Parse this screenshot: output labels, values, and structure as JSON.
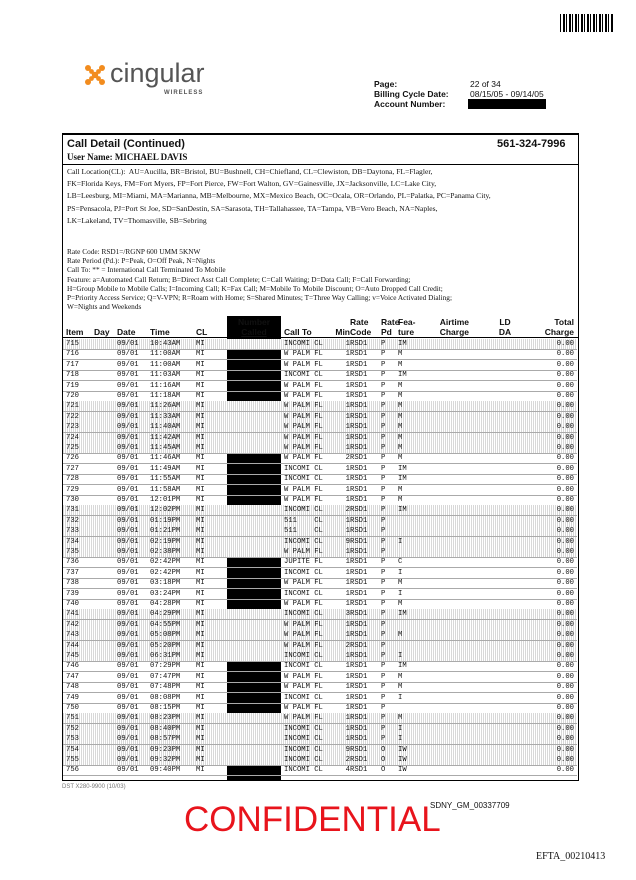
{
  "header": {
    "logo": "cingular",
    "logo_sub": "WIRELESS",
    "page_label": "Page:",
    "page_value": "22 of 34",
    "cycle_label": "Billing Cycle Date:",
    "cycle_value": "08/15/05 - 09/14/05",
    "account_label": "Account Number:"
  },
  "section": {
    "title": "Call Detail (Continued)",
    "phone": "561-324-7996",
    "user": "User Name: MICHAEL DAVIS"
  },
  "legend_location": [
    "Call Location(CL):  AU=Aucilla, BR=Bristol, BU=Bushnell, CH=Chiefland, CL=Clewiston, DB=Daytona, FL=Flagler,",
    "FK=Florida Keys, FM=Fort Myers, FP=Fort Pierce, FW=Fort Walton, GV=Gainesville, JX=Jacksonville, LC=Lake City,",
    "LB=Leesburg, MI=Miami, MA=Marianna, MB=Melbourne, MX=Mexico Beach, OC=Ocala, OR=Orlando, PL=Palatka, PC=Panama City,",
    "PS=Pensacola, PJ=Port St Joe, SD=SanDestin, SA=Sarasota, TH=Tallahassee, TA=Tampa, VB=Vero Beach, NA=Naples,",
    "LK=Lakeland, TV=Thomasville, SB=Sebring"
  ],
  "legend_codes": [
    "Rate Code: RSD1=/RGNP 600 UMM 5KNW",
    "Rate Period (Pd.): P=Peak, O=Off Peak, N=Nights",
    "Call To: ** = International Call Terminated To Mobile",
    "Feature: a=Automated Call Return; B=Direct Asst Call Complete; C=Call Waiting; D=Data Call; F=Call Forwarding;",
    "H=Group Mobile to Mobile Calls; I=Incoming Call; K=Fax Call; M=Mobile To Mobile Discount; O=Auto Dropped Call Credit;",
    "P=Priority Access Service; Q=V-VPN; R=Roam with Home; S=Shared Minutes; T=Three Way Calling; v=Voice Activated Dialing;",
    "W=Nights and Weekends"
  ],
  "table": {
    "columns": [
      [
        "Item"
      ],
      [
        "Day"
      ],
      [
        "Date"
      ],
      [
        "Time"
      ],
      [
        "CL"
      ],
      [
        "Number",
        "Called"
      ],
      [
        "Call To"
      ],
      [
        "Min"
      ],
      [
        "Rate",
        "Code"
      ],
      [
        "Rate",
        "Pd"
      ],
      [
        "Fea-",
        "ture"
      ],
      [
        "Airtime",
        "Charge"
      ],
      [
        "LD",
        "DA"
      ],
      [
        "Total",
        "Charge"
      ]
    ],
    "rows": [
      [
        "715",
        "09/01",
        "10:43AM",
        "MI",
        "INCOMI CL",
        "1",
        "RSD1",
        "P",
        "IM",
        "0.00"
      ],
      [
        "716",
        "09/01",
        "11:00AM",
        "MI",
        "W PALM FL",
        "1",
        "RSD1",
        "P",
        "M",
        "0.00"
      ],
      [
        "717",
        "09/01",
        "11:00AM",
        "MI",
        "W PALM FL",
        "1",
        "RSD1",
        "P",
        "M",
        "0.00"
      ],
      [
        "718",
        "09/01",
        "11:03AM",
        "MI",
        "INCOMI CL",
        "1",
        "RSD1",
        "P",
        "IM",
        "0.00"
      ],
      [
        "719",
        "09/01",
        "11:16AM",
        "MI",
        "W PALM FL",
        "1",
        "RSD1",
        "P",
        "M",
        "0.00"
      ],
      [
        "720",
        "09/01",
        "11:18AM",
        "MI",
        "W PALM FL",
        "1",
        "RSD1",
        "P",
        "M",
        "0.00"
      ],
      [
        "721",
        "09/01",
        "11:26AM",
        "MI",
        "W PALM FL",
        "1",
        "RSD1",
        "P",
        "M",
        "0.00"
      ],
      [
        "722",
        "09/01",
        "11:33AM",
        "MI",
        "W PALM FL",
        "1",
        "RSD1",
        "P",
        "M",
        "0.00"
      ],
      [
        "723",
        "09/01",
        "11:40AM",
        "MI",
        "W PALM FL",
        "1",
        "RSD1",
        "P",
        "M",
        "0.00"
      ],
      [
        "724",
        "09/01",
        "11:42AM",
        "MI",
        "W PALM FL",
        "1",
        "RSD1",
        "P",
        "M",
        "0.00"
      ],
      [
        "725",
        "09/01",
        "11:45AM",
        "MI",
        "W PALM FL",
        "1",
        "RSD1",
        "P",
        "M",
        "0.00"
      ],
      [
        "726",
        "09/01",
        "11:46AM",
        "MI",
        "W PALM FL",
        "2",
        "RSD1",
        "P",
        "M",
        "0.00"
      ],
      [
        "727",
        "09/01",
        "11:49AM",
        "MI",
        "INCOMI CL",
        "1",
        "RSD1",
        "P",
        "IM",
        "0.00"
      ],
      [
        "728",
        "09/01",
        "11:55AM",
        "MI",
        "INCOMI CL",
        "1",
        "RSD1",
        "P",
        "IM",
        "0.00"
      ],
      [
        "729",
        "09/01",
        "11:58AM",
        "MI",
        "W PALM FL",
        "1",
        "RSD1",
        "P",
        "M",
        "0.00"
      ],
      [
        "730",
        "09/01",
        "12:01PM",
        "MI",
        "W PALM FL",
        "1",
        "RSD1",
        "P",
        "M",
        "0.00"
      ],
      [
        "731",
        "09/01",
        "12:02PM",
        "MI",
        "INCOMI CL",
        "2",
        "RSD1",
        "P",
        "IM",
        "0.00"
      ],
      [
        "732",
        "09/01",
        "01:19PM",
        "MI",
        "511    CL",
        "1",
        "RSD1",
        "P",
        null,
        "0.00"
      ],
      [
        "733",
        "09/01",
        "01:21PM",
        "MI",
        "511    CL",
        "1",
        "RSD1",
        "P",
        null,
        "0.00"
      ],
      [
        "734",
        "09/01",
        "02:19PM",
        "MI",
        "INCOMI CL",
        "9",
        "RSD1",
        "P",
        "I",
        "0.00"
      ],
      [
        "735",
        "09/01",
        "02:38PM",
        "MI",
        "W PALM FL",
        "1",
        "RSD1",
        "P",
        null,
        "0.00"
      ],
      [
        "736",
        "09/01",
        "02:42PM",
        "MI",
        "JUPITE FL",
        "1",
        "RSD1",
        "P",
        "C",
        "0.00"
      ],
      [
        "737",
        "09/01",
        "02:42PM",
        "MI",
        "INCOMI CL",
        "1",
        "RSD1",
        "P",
        "I",
        "0.00"
      ],
      [
        "738",
        "09/01",
        "03:18PM",
        "MI",
        "W PALM FL",
        "1",
        "RSD1",
        "P",
        "M",
        "0.00"
      ],
      [
        "739",
        "09/01",
        "03:24PM",
        "MI",
        "INCOMI CL",
        "1",
        "RSD1",
        "P",
        "I",
        "0.00"
      ],
      [
        "740",
        "09/01",
        "04:28PM",
        "MI",
        "W PALM FL",
        "1",
        "RSD1",
        "P",
        "M",
        "0.00"
      ],
      [
        "741",
        "09/01",
        "04:29PM",
        "MI",
        "INCOMI CL",
        "3",
        "RSD1",
        "P",
        "IM",
        "0.00"
      ],
      [
        "742",
        "09/01",
        "04:55PM",
        "MI",
        "W PALM FL",
        "1",
        "RSD1",
        "P",
        null,
        "0.00"
      ],
      [
        "743",
        "09/01",
        "05:08PM",
        "MI",
        "W PALM FL",
        "1",
        "RSD1",
        "P",
        "M",
        "0.00"
      ],
      [
        "744",
        "09/01",
        "05:20PM",
        "MI",
        "W PALM FL",
        "2",
        "RSD1",
        "P",
        null,
        "0.00"
      ],
      [
        "745",
        "09/01",
        "06:31PM",
        "MI",
        "INCOMI CL",
        "1",
        "RSD1",
        "P",
        "I",
        "0.00"
      ],
      [
        "746",
        "09/01",
        "07:29PM",
        "MI",
        "INCOMI CL",
        "1",
        "RSD1",
        "P",
        "IM",
        "0.00"
      ],
      [
        "747",
        "09/01",
        "07:47PM",
        "MI",
        "W PALM FL",
        "1",
        "RSD1",
        "P",
        "M",
        "0.00"
      ],
      [
        "748",
        "09/01",
        "07:48PM",
        "MI",
        "W PALM FL",
        "1",
        "RSD1",
        "P",
        "M",
        "0.00"
      ],
      [
        "749",
        "09/01",
        "08:08PM",
        "MI",
        "INCOMI CL",
        "1",
        "RSD1",
        "P",
        "I",
        "0.00"
      ],
      [
        "750",
        "09/01",
        "08:15PM",
        "MI",
        "W PALM FL",
        "1",
        "RSD1",
        "P",
        null,
        "0.00"
      ],
      [
        "751",
        "09/01",
        "08:23PM",
        "MI",
        "W PALM FL",
        "1",
        "RSD1",
        "P",
        "M",
        "0.00"
      ],
      [
        "752",
        "09/01",
        "08:40PM",
        "MI",
        "INCOMI CL",
        "1",
        "RSD1",
        "P",
        "I",
        "0.00"
      ],
      [
        "753",
        "09/01",
        "08:57PM",
        "MI",
        "INCOMI CL",
        "1",
        "RSD1",
        "P",
        "I",
        "0.00"
      ],
      [
        "754",
        "09/01",
        "09:23PM",
        "MI",
        "INCOMI CL",
        "9",
        "RSD1",
        "O",
        "IW",
        "0.00"
      ],
      [
        "755",
        "09/01",
        "09:32PM",
        "MI",
        "INCOMI CL",
        "2",
        "RSD1",
        "O",
        "IW",
        "0.00"
      ],
      [
        "756",
        "09/01",
        "09:40PM",
        "MI",
        "INCOMI CL",
        "4",
        "RSD1",
        "O",
        "IW",
        "0.00"
      ]
    ]
  },
  "footer": {
    "form": "DST X280-9900 (10/03)",
    "bates": "SDNY_GM_00337709",
    "stamp": "CONFIDENTIAL",
    "efta": "EFTA_00210413"
  }
}
